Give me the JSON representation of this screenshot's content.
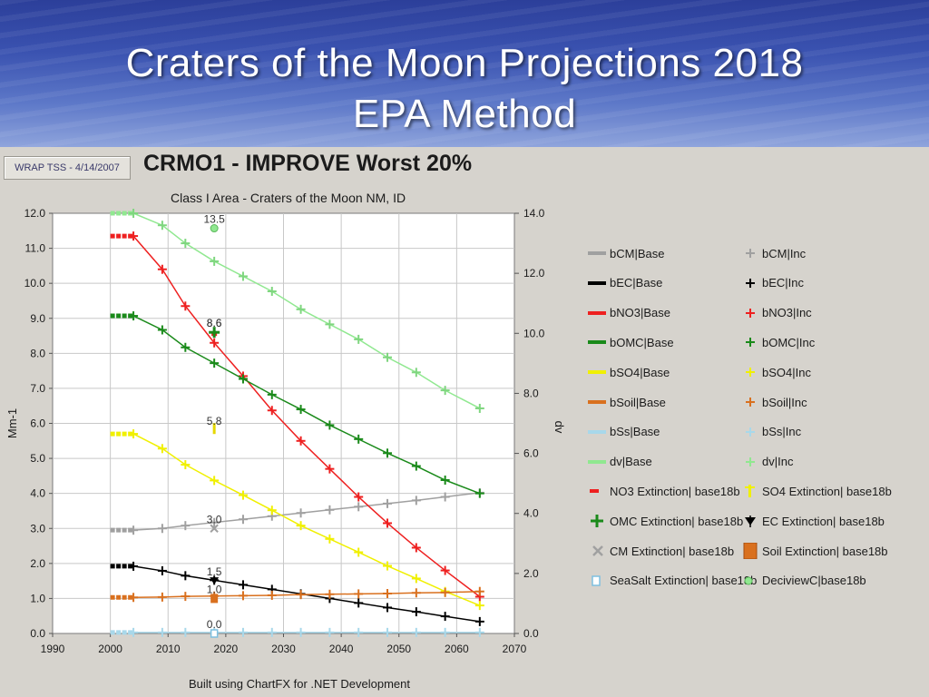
{
  "slide": {
    "title_line1": "Craters of the Moon Projections 2018",
    "title_line2": "EPA Method"
  },
  "badge": "WRAP TSS - 4/14/2007",
  "footer": "Built using ChartFX for .NET Development",
  "chart_data": {
    "type": "line",
    "title": "CRMO1 - IMPROVE Worst 20%",
    "subtitle": "Class I Area - Craters of the Moon NM, ID",
    "ylabel": "Mm-1",
    "y2label": "dv",
    "xlim": [
      1990,
      2070
    ],
    "ylim": [
      0,
      12
    ],
    "y2lim": [
      0,
      14
    ],
    "x_ticks": [
      1990,
      2000,
      2010,
      2020,
      2030,
      2040,
      2050,
      2060,
      2070
    ],
    "y_ticks": [
      "0.0",
      "1.0",
      "2.0",
      "3.0",
      "4.0",
      "5.0",
      "6.0",
      "7.0",
      "8.0",
      "9.0",
      "10.0",
      "11.0",
      "12.0"
    ],
    "y2_ticks": [
      "0.0",
      "2.0",
      "4.0",
      "6.0",
      "8.0",
      "10.0",
      "12.0",
      "14.0"
    ],
    "grid": true,
    "legend_position": "right",
    "colors": {
      "bCM": "#a0a0a0",
      "bEC": "#000000",
      "bNO3": "#ee2020",
      "bOMC": "#1a8a1a",
      "bSO4": "#f0f000",
      "bSoil": "#d9701e",
      "bSs": "#a8d8ea",
      "dv": "#90e890"
    },
    "base_series": [
      {
        "name": "bCM|Base",
        "key": "bCM",
        "x": [
          2000,
          2004
        ],
        "y": [
          2.95,
          2.95
        ]
      },
      {
        "name": "bEC|Base",
        "key": "bEC",
        "x": [
          2000,
          2004
        ],
        "y": [
          1.92,
          1.92
        ]
      },
      {
        "name": "bNO3|Base",
        "key": "bNO3",
        "x": [
          2000,
          2004
        ],
        "y": [
          11.35,
          11.35
        ]
      },
      {
        "name": "bOMC|Base",
        "key": "bOMC",
        "x": [
          2000,
          2004
        ],
        "y": [
          9.07,
          9.07
        ]
      },
      {
        "name": "bSO4|Base",
        "key": "bSO4",
        "x": [
          2000,
          2004
        ],
        "y": [
          5.7,
          5.7
        ]
      },
      {
        "name": "bSoil|Base",
        "key": "bSoil",
        "x": [
          2000,
          2004
        ],
        "y": [
          1.03,
          1.03
        ]
      },
      {
        "name": "bSs|Base",
        "key": "bSs",
        "x": [
          2000,
          2004
        ],
        "y": [
          0.03,
          0.03
        ]
      },
      {
        "name": "dv|Base",
        "key": "dv",
        "axis": "y2",
        "x": [
          2000,
          2004
        ],
        "y": [
          14.0,
          14.0
        ]
      }
    ],
    "inc_x": [
      2004,
      2009,
      2013,
      2018,
      2023,
      2028,
      2033,
      2038,
      2043,
      2048,
      2053,
      2058,
      2064
    ],
    "inc_series": [
      {
        "name": "bCM|Inc",
        "key": "bCM",
        "y": [
          2.95,
          3.0,
          3.08,
          3.17,
          3.26,
          3.35,
          3.44,
          3.53,
          3.62,
          3.71,
          3.8,
          3.9,
          4.02
        ]
      },
      {
        "name": "bEC|Inc",
        "key": "bEC",
        "y": [
          1.92,
          1.79,
          1.65,
          1.52,
          1.39,
          1.26,
          1.13,
          1.0,
          0.87,
          0.74,
          0.62,
          0.49,
          0.34
        ]
      },
      {
        "name": "bNO3|Inc",
        "key": "bNO3",
        "y": [
          11.35,
          10.4,
          9.35,
          8.3,
          7.35,
          6.37,
          5.5,
          4.7,
          3.9,
          3.15,
          2.45,
          1.8,
          1.05
        ]
      },
      {
        "name": "bOMC|Inc",
        "key": "bOMC",
        "y": [
          9.07,
          8.67,
          8.17,
          7.72,
          7.27,
          6.82,
          6.4,
          5.95,
          5.55,
          5.15,
          4.78,
          4.38,
          4.0
        ]
      },
      {
        "name": "bSO4|Inc",
        "key": "bSO4",
        "y": [
          5.7,
          5.28,
          4.82,
          4.37,
          3.95,
          3.52,
          3.08,
          2.7,
          2.32,
          1.93,
          1.57,
          1.2,
          0.8
        ]
      },
      {
        "name": "bSoil|Inc",
        "key": "bSoil",
        "y": [
          1.03,
          1.04,
          1.06,
          1.07,
          1.08,
          1.09,
          1.11,
          1.12,
          1.13,
          1.14,
          1.16,
          1.17,
          1.2
        ]
      },
      {
        "name": "bSs|Inc",
        "key": "bSs",
        "y": [
          0.03,
          0.03,
          0.03,
          0.03,
          0.03,
          0.03,
          0.03,
          0.03,
          0.03,
          0.03,
          0.03,
          0.03,
          0.03
        ]
      },
      {
        "name": "dv|Inc",
        "key": "dv",
        "axis": "y2",
        "y": [
          14.0,
          13.6,
          13.0,
          12.4,
          11.9,
          11.4,
          10.8,
          10.3,
          9.8,
          9.2,
          8.7,
          8.1,
          7.5
        ]
      }
    ],
    "markers_2018": [
      {
        "name": "NO3 Extinction| base18b",
        "key": "no3",
        "x": 2018,
        "y": 8.6,
        "label": "8.6"
      },
      {
        "name": "OMC Extinction| base18b",
        "key": "omc",
        "x": 2018,
        "y": 8.6,
        "label": "8.6"
      },
      {
        "name": "SO4 Extinction| base18b",
        "key": "so4",
        "x": 2018,
        "y": 5.8,
        "label": "5.8"
      },
      {
        "name": "CM Extinction| base18b",
        "key": "cm",
        "x": 2018,
        "y": 3.0,
        "label": "3.0"
      },
      {
        "name": "EC Extinction| base18b",
        "key": "ec",
        "x": 2018,
        "y": 1.5,
        "label": "1.5"
      },
      {
        "name": "Soil Extinction| base18b",
        "key": "soil",
        "x": 2018,
        "y": 1.0,
        "label": "1.0"
      },
      {
        "name": "SeaSalt Extinction| base18b",
        "key": "ss",
        "x": 2018,
        "y": 0.0,
        "label": "0.0"
      },
      {
        "name": "DeciviewC|base18b",
        "key": "dvc",
        "axis": "y2",
        "x": 2018,
        "y": 13.5,
        "label": "13.5"
      }
    ],
    "legend": [
      {
        "label": "bCM|Base",
        "sym": "line",
        "color": "#a0a0a0"
      },
      {
        "label": "bCM|Inc",
        "sym": "plus",
        "color": "#a0a0a0"
      },
      {
        "label": "bEC|Base",
        "sym": "line",
        "color": "#000000"
      },
      {
        "label": "bEC|Inc",
        "sym": "plus",
        "color": "#000000"
      },
      {
        "label": "bNO3|Base",
        "sym": "line",
        "color": "#ee2020"
      },
      {
        "label": "bNO3|Inc",
        "sym": "plus",
        "color": "#ee2020"
      },
      {
        "label": "bOMC|Base",
        "sym": "line",
        "color": "#1a8a1a"
      },
      {
        "label": "bOMC|Inc",
        "sym": "plus",
        "color": "#1a8a1a"
      },
      {
        "label": "bSO4|Base",
        "sym": "line",
        "color": "#f0f000"
      },
      {
        "label": "bSO4|Inc",
        "sym": "plus",
        "color": "#f0f000"
      },
      {
        "label": "bSoil|Base",
        "sym": "line",
        "color": "#d9701e"
      },
      {
        "label": "bSoil|Inc",
        "sym": "plus",
        "color": "#d9701e"
      },
      {
        "label": "bSs|Base",
        "sym": "line",
        "color": "#a8d8ea"
      },
      {
        "label": "bSs|Inc",
        "sym": "plus",
        "color": "#a8d8ea"
      },
      {
        "label": "dv|Base",
        "sym": "line",
        "color": "#90e890"
      },
      {
        "label": "dv|Inc",
        "sym": "plus",
        "color": "#90e890"
      },
      {
        "label": "NO3 Extinction| base18b",
        "sym": "dash",
        "color": "#ee2020"
      },
      {
        "label": "SO4 Extinction| base18b",
        "sym": "bar",
        "color": "#f0f000"
      },
      {
        "label": "OMC Extinction| base18b",
        "sym": "plusbold",
        "color": "#1a8a1a"
      },
      {
        "label": "EC Extinction| base18b",
        "sym": "triangle",
        "color": "#000000"
      },
      {
        "label": "CM Extinction| base18b",
        "sym": "x",
        "color": "#a0a0a0"
      },
      {
        "label": "Soil Extinction| base18b",
        "sym": "square",
        "color": "#d9701e"
      },
      {
        "label": "SeaSalt Extinction| base18b",
        "sym": "hollowsquare",
        "color": "#7fc0e0"
      },
      {
        "label": "DeciviewC|base18b",
        "sym": "circle",
        "color": "#90e890"
      }
    ]
  }
}
